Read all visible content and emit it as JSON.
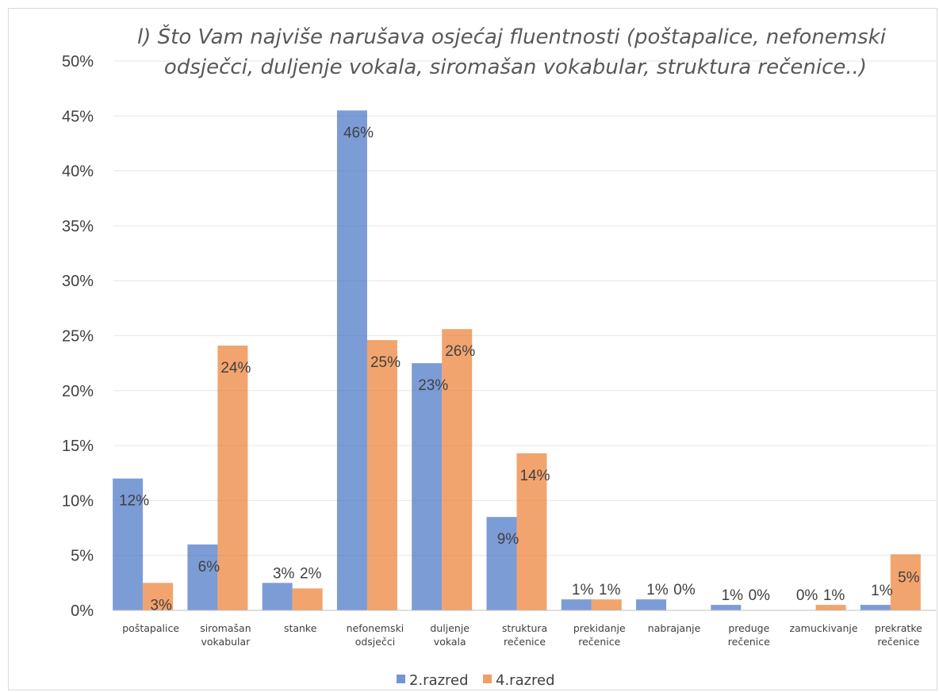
{
  "chart_data": {
    "type": "bar",
    "title_lines": [
      "l) Što Vam najviše narušava osjećaj fluentnosti (poštapalice, nefonemski",
      "odsječci, duljenje vokala, siromašan vokabular, struktura rečenice..)"
    ],
    "categories": [
      [
        "poštapalice"
      ],
      [
        "siromašan",
        "vokabular"
      ],
      [
        "stanke"
      ],
      [
        "nefonemski",
        "odsječci"
      ],
      [
        "duljenje",
        "vokala"
      ],
      [
        "struktura",
        "rečenice"
      ],
      [
        "prekidanje",
        "rečenice"
      ],
      [
        "nabrajanje"
      ],
      [
        "preduge",
        "rečenice"
      ],
      [
        "zamuckivanje"
      ],
      [
        "prekratke",
        "rečenice"
      ]
    ],
    "series": [
      {
        "name": "2.razred",
        "color": "#4472C4",
        "values": [
          12,
          6,
          2.5,
          45.5,
          22.5,
          8.5,
          1,
          1,
          0.5,
          0,
          0.5
        ],
        "labels": [
          "12%",
          "6%",
          "3%",
          "46%",
          "23%",
          "9%",
          "1%",
          "1%",
          "1%",
          "0%",
          "1%"
        ]
      },
      {
        "name": "4.razred",
        "color": "#ED7D31",
        "values": [
          2.5,
          24.1,
          2,
          24.6,
          25.6,
          14.3,
          1,
          0,
          0,
          0.5,
          5.1
        ],
        "labels": [
          "3%",
          "24%",
          "2%",
          "25%",
          "26%",
          "14%",
          "1%",
          "0%",
          "0%",
          "1%",
          "5%"
        ]
      }
    ],
    "y_ticks": [
      "0%",
      "5%",
      "10%",
      "15%",
      "20%",
      "25%",
      "30%",
      "35%",
      "40%",
      "45%",
      "50%"
    ],
    "ylim": [
      0,
      50
    ],
    "grid": true,
    "legend_position": "bottom"
  }
}
